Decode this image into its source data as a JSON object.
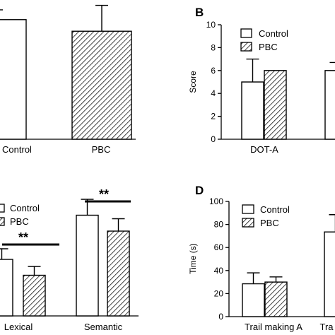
{
  "figure": {
    "panel_labels": [
      "B",
      "D"
    ]
  },
  "chart_data": [
    {
      "panel": "A",
      "type": "bar",
      "title": "",
      "xlabel": "",
      "ylabel": "",
      "categories": [
        "Control",
        "PBC"
      ],
      "series": [
        {
          "name": "",
          "values": [
            6.7,
            6.05
          ],
          "errors": [
            0.55,
            1.45
          ],
          "pattern": [
            "white",
            "hatched"
          ]
        }
      ],
      "grid": false,
      "legend": "none"
    },
    {
      "panel": "B",
      "type": "bar",
      "title": "",
      "xlabel": "",
      "ylabel": "Score",
      "ylim": [
        0,
        10
      ],
      "yticks": [
        0,
        2,
        4,
        6,
        8,
        10
      ],
      "categories": [
        "DOT-A",
        ""
      ],
      "series": [
        {
          "name": "Control",
          "values": [
            5.0,
            6.0
          ],
          "errors": [
            2.0,
            0.7
          ]
        },
        {
          "name": "PBC",
          "values": [
            6.0,
            null
          ],
          "errors": [
            0,
            null
          ]
        }
      ],
      "grid": false,
      "legend": "top-left"
    },
    {
      "panel": "C",
      "type": "bar",
      "title": "",
      "xlabel": "",
      "ylabel": "",
      "categories": [
        "Lexical",
        "Semantic"
      ],
      "series": [
        {
          "name": "Control",
          "values": [
            16.0,
            28.5
          ],
          "errors": [
            3.0,
            4.5
          ]
        },
        {
          "name": "PBC",
          "values": [
            11.5,
            24.0
          ],
          "errors": [
            2.5,
            3.5
          ]
        }
      ],
      "annotations": [
        {
          "text": "**",
          "between": "Lexical"
        },
        {
          "text": "**",
          "between": "Semantic"
        }
      ],
      "grid": false,
      "legend": "top-left"
    },
    {
      "panel": "D",
      "type": "bar",
      "title": "",
      "xlabel": "",
      "ylabel": "Time (s)",
      "ylim": [
        0,
        100
      ],
      "yticks": [
        0,
        20,
        40,
        60,
        80,
        100
      ],
      "categories": [
        "Trail making A",
        "Tra"
      ],
      "series": [
        {
          "name": "Control",
          "values": [
            28.5,
            73.5
          ],
          "errors": [
            9.5,
            15.0
          ]
        },
        {
          "name": "PBC",
          "values": [
            30.0,
            null
          ],
          "errors": [
            4.5,
            null
          ]
        }
      ],
      "grid": false,
      "legend": "top-left"
    }
  ]
}
